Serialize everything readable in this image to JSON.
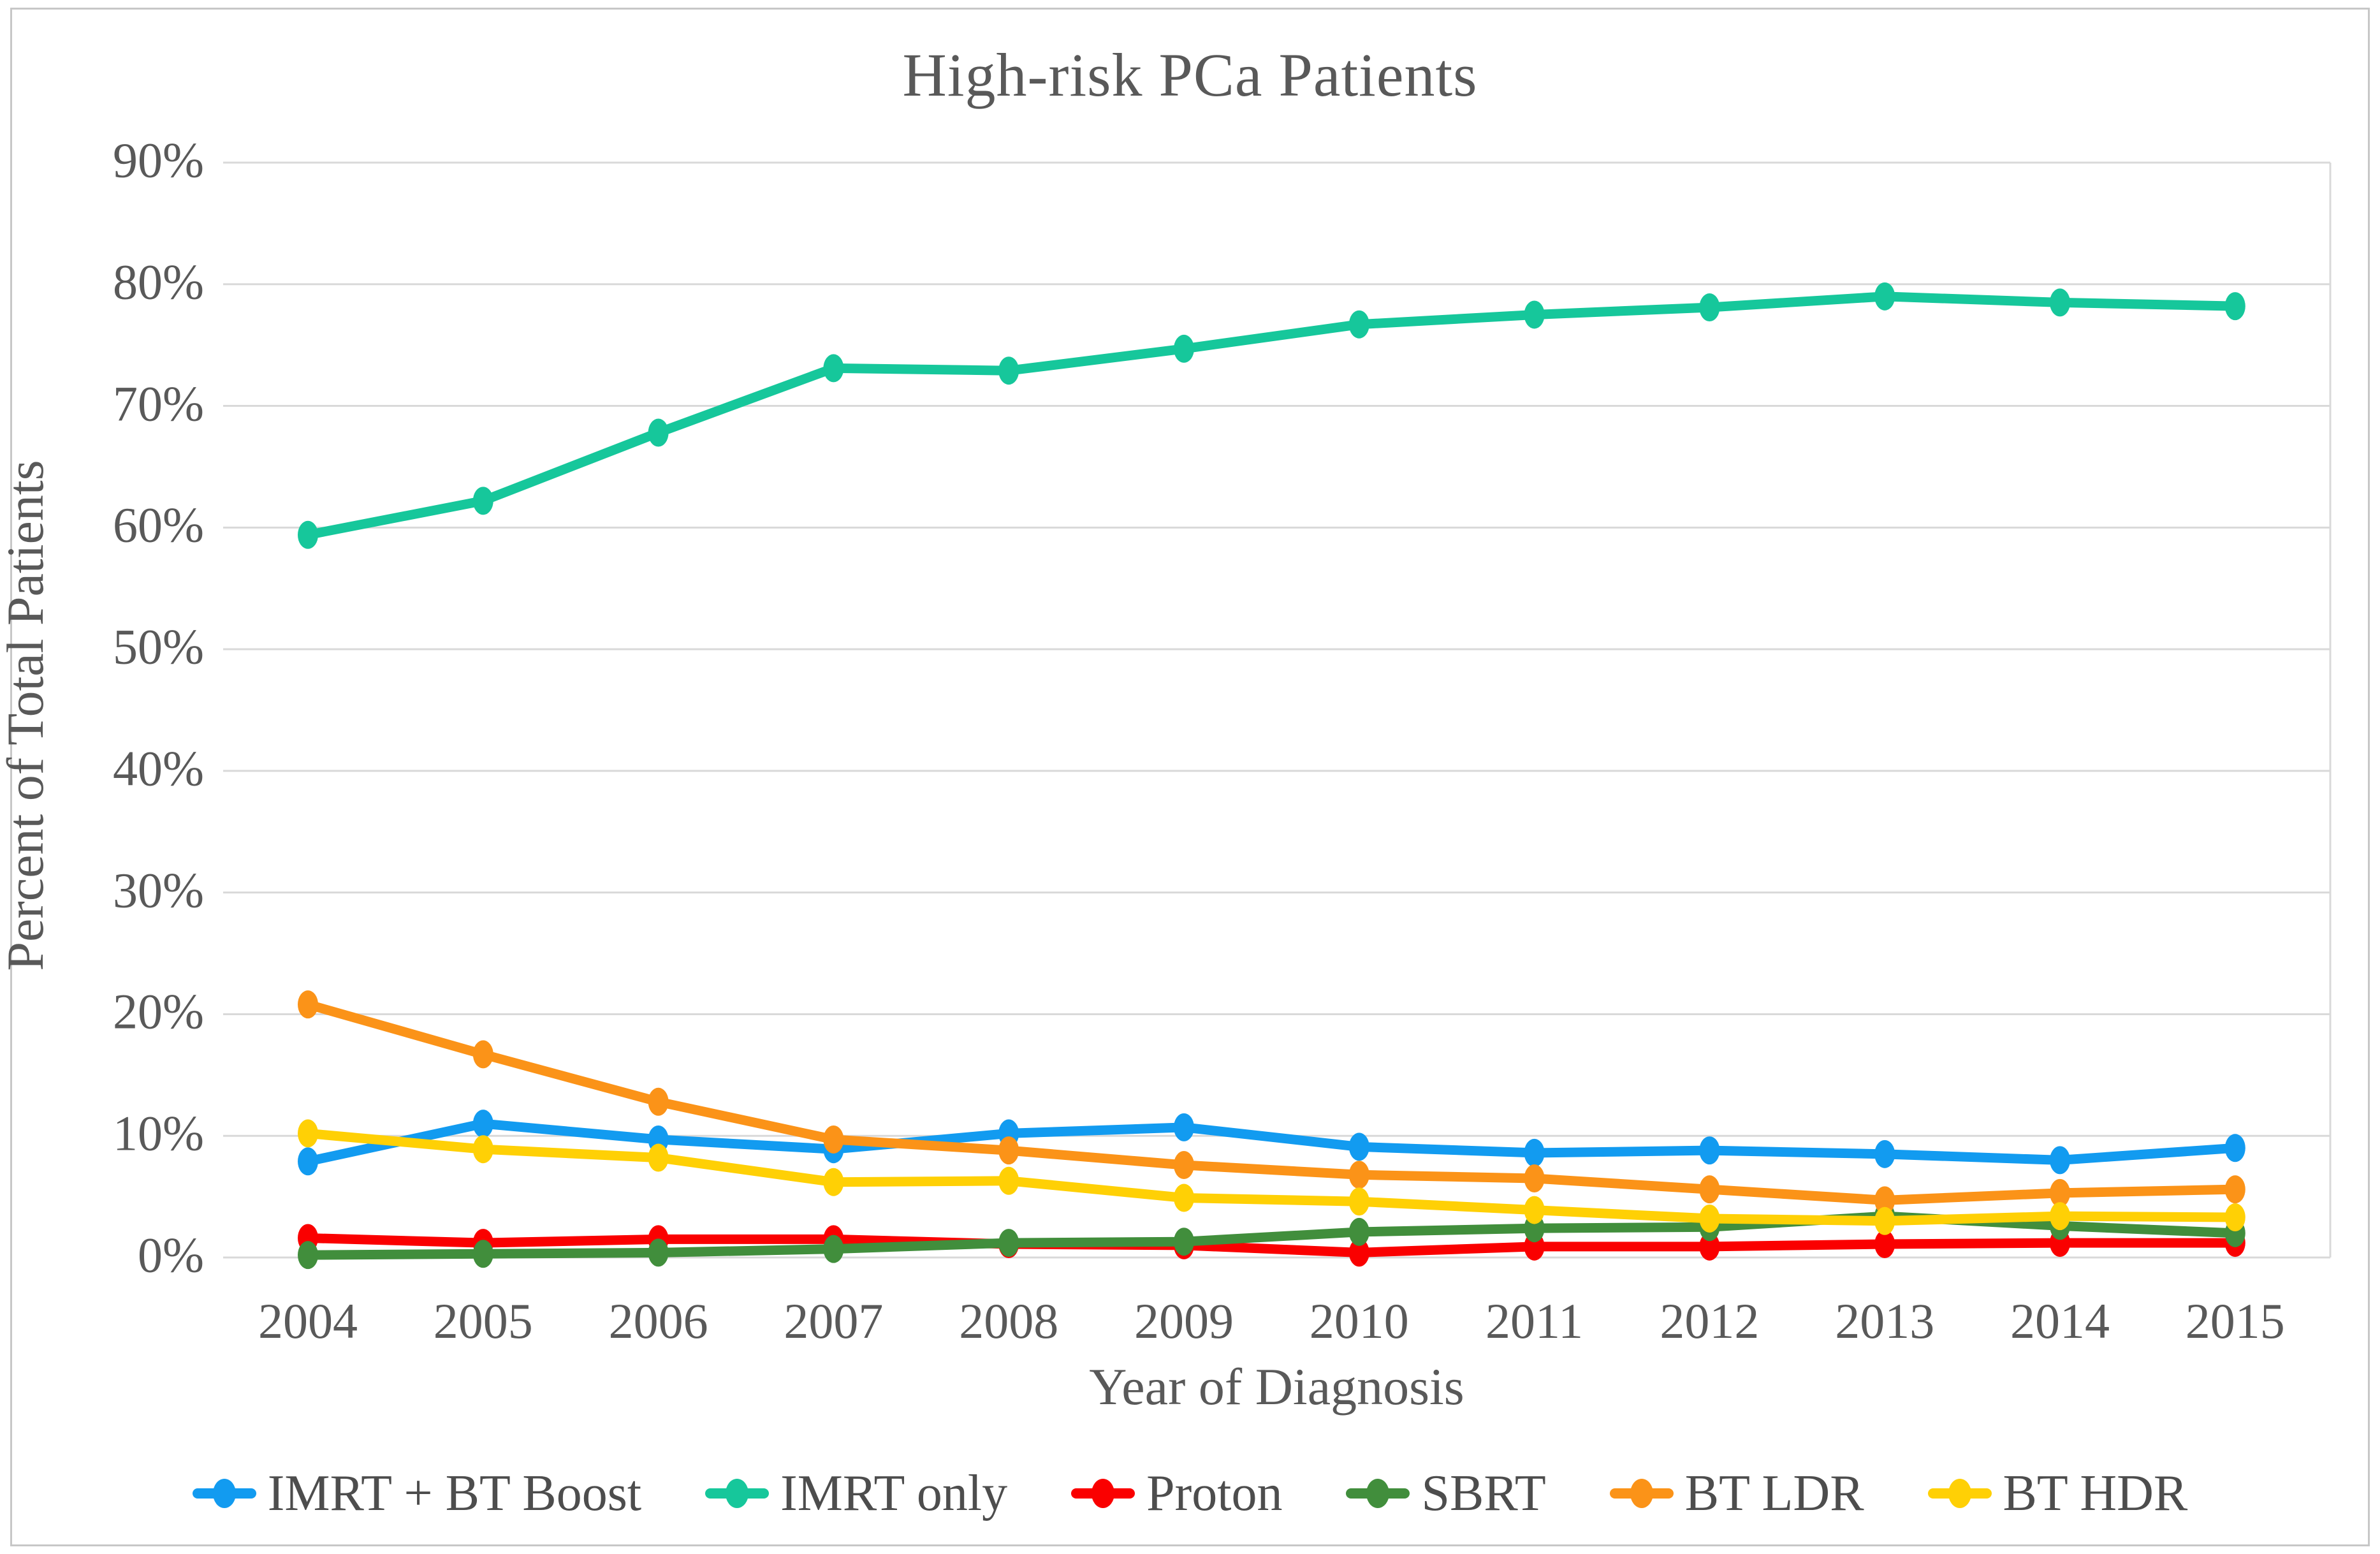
{
  "chart_data": {
    "type": "line",
    "title": "High-risk PCa Patients",
    "xlabel": "Year of Diagnosis",
    "ylabel": "Percent of Total Patients",
    "x_categories": [
      "2004",
      "2005",
      "2006",
      "2007",
      "2008",
      "2009",
      "2010",
      "2011",
      "2012",
      "2013",
      "2014",
      "2015"
    ],
    "ylim": [
      0,
      90
    ],
    "y_tick_values": [
      0,
      10,
      20,
      30,
      40,
      50,
      60,
      70,
      80,
      90
    ],
    "y_tick_labels": [
      "0%",
      "10%",
      "20%",
      "30%",
      "40%",
      "50%",
      "60%",
      "70%",
      "80%",
      "90%"
    ],
    "grid": true,
    "legend_position": "bottom",
    "series": [
      {
        "name": "IMRT + BT Boost",
        "color": "#129BF0",
        "values": [
          7.9,
          11.0,
          9.7,
          8.9,
          10.2,
          10.7,
          9.1,
          8.6,
          8.8,
          8.5,
          8.0,
          9.0
        ]
      },
      {
        "name": "IMRT only",
        "color": "#16C79B",
        "values": [
          59.4,
          62.2,
          67.8,
          73.1,
          72.9,
          74.7,
          76.7,
          77.5,
          78.1,
          79.0,
          78.5,
          78.2
        ]
      },
      {
        "name": "Proton",
        "color": "#FA0000",
        "values": [
          1.6,
          1.2,
          1.5,
          1.5,
          1.1,
          1.0,
          0.4,
          0.9,
          0.9,
          1.1,
          1.2,
          1.2
        ]
      },
      {
        "name": "SBRT",
        "color": "#418E3C",
        "values": [
          0.2,
          0.3,
          0.4,
          0.7,
          1.2,
          1.3,
          2.1,
          2.4,
          2.5,
          3.4,
          2.6,
          2.0
        ]
      },
      {
        "name": "BT LDR",
        "color": "#FB9318",
        "values": [
          20.8,
          16.7,
          12.8,
          9.7,
          8.8,
          7.6,
          6.8,
          6.5,
          5.6,
          4.7,
          5.3,
          5.6
        ]
      },
      {
        "name": "BT HDR",
        "color": "#FFD005",
        "values": [
          10.2,
          8.9,
          8.2,
          6.2,
          6.3,
          4.9,
          4.6,
          3.9,
          3.2,
          3.0,
          3.4,
          3.3
        ]
      }
    ]
  },
  "colors": {
    "text": "#595959",
    "grid": "#D9D9D9",
    "frame_border": "#C7C7C7",
    "background": "#FFFFFF"
  }
}
